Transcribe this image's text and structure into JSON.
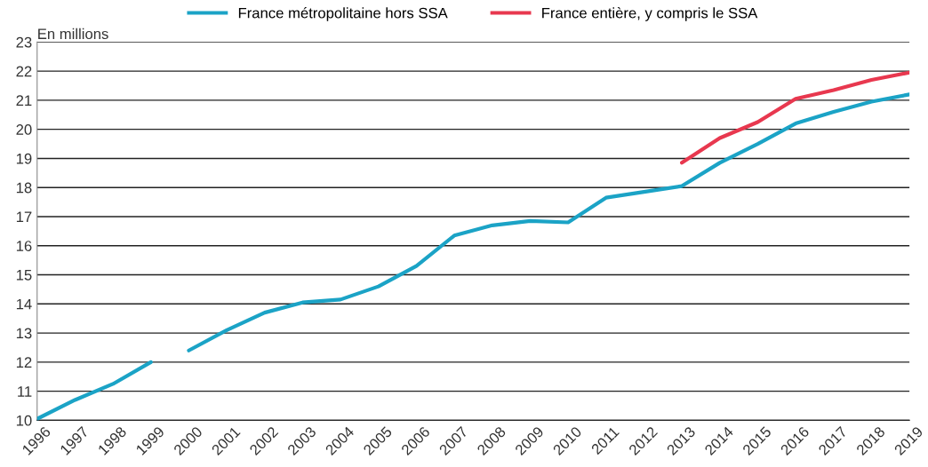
{
  "chart_data": {
    "type": "line",
    "ylabel": "En millions",
    "x": [
      1996,
      1997,
      1998,
      1999,
      1999.5,
      2000,
      2001,
      2002,
      2003,
      2004,
      2005,
      2006,
      2007,
      2008,
      2009,
      2010,
      2011,
      2012,
      2013,
      2014,
      2015,
      2016,
      2017,
      2018,
      2019
    ],
    "series": [
      {
        "name": "France métropolitaine hors SSA",
        "color": "#1ba3c6",
        "values": [
          10.05,
          10.7,
          11.25,
          12.0,
          null,
          12.4,
          13.1,
          13.7,
          14.05,
          14.15,
          14.6,
          15.3,
          16.35,
          16.7,
          16.85,
          16.8,
          17.65,
          17.85,
          18.05,
          18.85,
          19.5,
          20.2,
          20.6,
          20.95,
          21.2
        ]
      },
      {
        "name": "France entière, y compris le SSA",
        "color": "#e8384f",
        "x": [
          2013,
          2014,
          2015,
          2016,
          2017,
          2018,
          2019
        ],
        "values": [
          18.85,
          19.7,
          20.25,
          21.05,
          21.35,
          21.7,
          21.95
        ]
      }
    ],
    "xlim": [
      1996,
      2019
    ],
    "xticks": [
      1996,
      1997,
      1998,
      1999,
      2000,
      2001,
      2002,
      2003,
      2004,
      2005,
      2006,
      2007,
      2008,
      2009,
      2010,
      2011,
      2012,
      2013,
      2014,
      2015,
      2016,
      2017,
      2018,
      2019
    ],
    "ylim": [
      10,
      23
    ],
    "yticks": [
      10,
      11,
      12,
      13,
      14,
      15,
      16,
      17,
      18,
      19,
      20,
      21,
      22,
      23
    ],
    "grid": "y",
    "legend": "top",
    "marker": "none",
    "line_style": "solid"
  }
}
